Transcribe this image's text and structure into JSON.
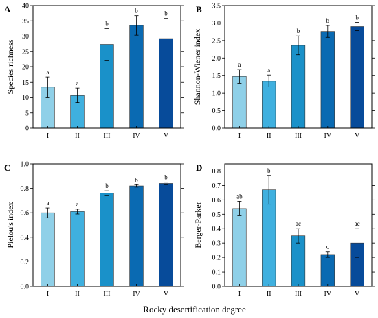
{
  "figure": {
    "xlabel": "Rocky desertification degree"
  },
  "colors": [
    "#8fd0e8",
    "#3fb0df",
    "#1a91c9",
    "#0a6ab2",
    "#074b9a"
  ],
  "chart_data": [
    {
      "panel": "A",
      "type": "bar",
      "ylabel": "Species richness",
      "categories": [
        "I",
        "II",
        "III",
        "IV",
        "V"
      ],
      "values": [
        13.3,
        10.7,
        27.3,
        33.5,
        29.2
      ],
      "errors": [
        3.3,
        2.3,
        5.2,
        3.2,
        6.6
      ],
      "letters": [
        "a",
        "a",
        "b",
        "b",
        "b"
      ],
      "ylim": [
        0,
        40
      ],
      "yticks": [
        0,
        5,
        10,
        15,
        20,
        25,
        30,
        35,
        40
      ],
      "ytick_labels": [
        "0",
        "5",
        "10",
        "15",
        "20",
        "25",
        "30",
        "35",
        "40"
      ]
    },
    {
      "panel": "B",
      "type": "bar",
      "ylabel": "Shannon-Wiener index",
      "categories": [
        "I",
        "II",
        "III",
        "IV",
        "V"
      ],
      "values": [
        1.47,
        1.34,
        2.36,
        2.76,
        2.9
      ],
      "errors": [
        0.2,
        0.17,
        0.27,
        0.17,
        0.12
      ],
      "letters": [
        "a",
        "a",
        "b",
        "b",
        "b"
      ],
      "ylim": [
        0,
        3.5
      ],
      "yticks": [
        0,
        0.5,
        1,
        1.5,
        2,
        2.5,
        3,
        3.5
      ],
      "ytick_labels": [
        "0.0",
        "0.5",
        "1.0",
        "1.5",
        "2.0",
        "2.5",
        "3.0",
        "3.5"
      ]
    },
    {
      "panel": "C",
      "type": "bar",
      "ylabel": "Pielou's index",
      "categories": [
        "I",
        "II",
        "III",
        "IV",
        "V"
      ],
      "values": [
        0.6,
        0.61,
        0.76,
        0.82,
        0.84
      ],
      "errors": [
        0.04,
        0.02,
        0.02,
        0.01,
        0.01
      ],
      "letters": [
        "a",
        "a",
        "b",
        "b",
        "b"
      ],
      "ylim": [
        0,
        1
      ],
      "yticks": [
        0,
        0.2,
        0.4,
        0.6,
        0.8,
        1
      ],
      "ytick_labels": [
        "0.0",
        "0.2",
        "0.4",
        "0.6",
        "0.8",
        "1.0"
      ]
    },
    {
      "panel": "D",
      "type": "bar",
      "ylabel": "Berger-Parker",
      "categories": [
        "I",
        "II",
        "III",
        "IV",
        "V"
      ],
      "values": [
        0.54,
        0.67,
        0.35,
        0.22,
        0.3
      ],
      "errors": [
        0.05,
        0.1,
        0.05,
        0.02,
        0.1
      ],
      "letters": [
        "ab",
        "b",
        "ac",
        "c",
        "ac"
      ],
      "ylim": [
        0,
        0.85
      ],
      "yticks": [
        0,
        0.1,
        0.2,
        0.3,
        0.4,
        0.5,
        0.6,
        0.7,
        0.8
      ],
      "ytick_labels": [
        "0.0",
        "0.1",
        "0.2",
        "0.3",
        "0.4",
        "0.5",
        "0.6",
        "0.7",
        "0.8"
      ]
    }
  ]
}
